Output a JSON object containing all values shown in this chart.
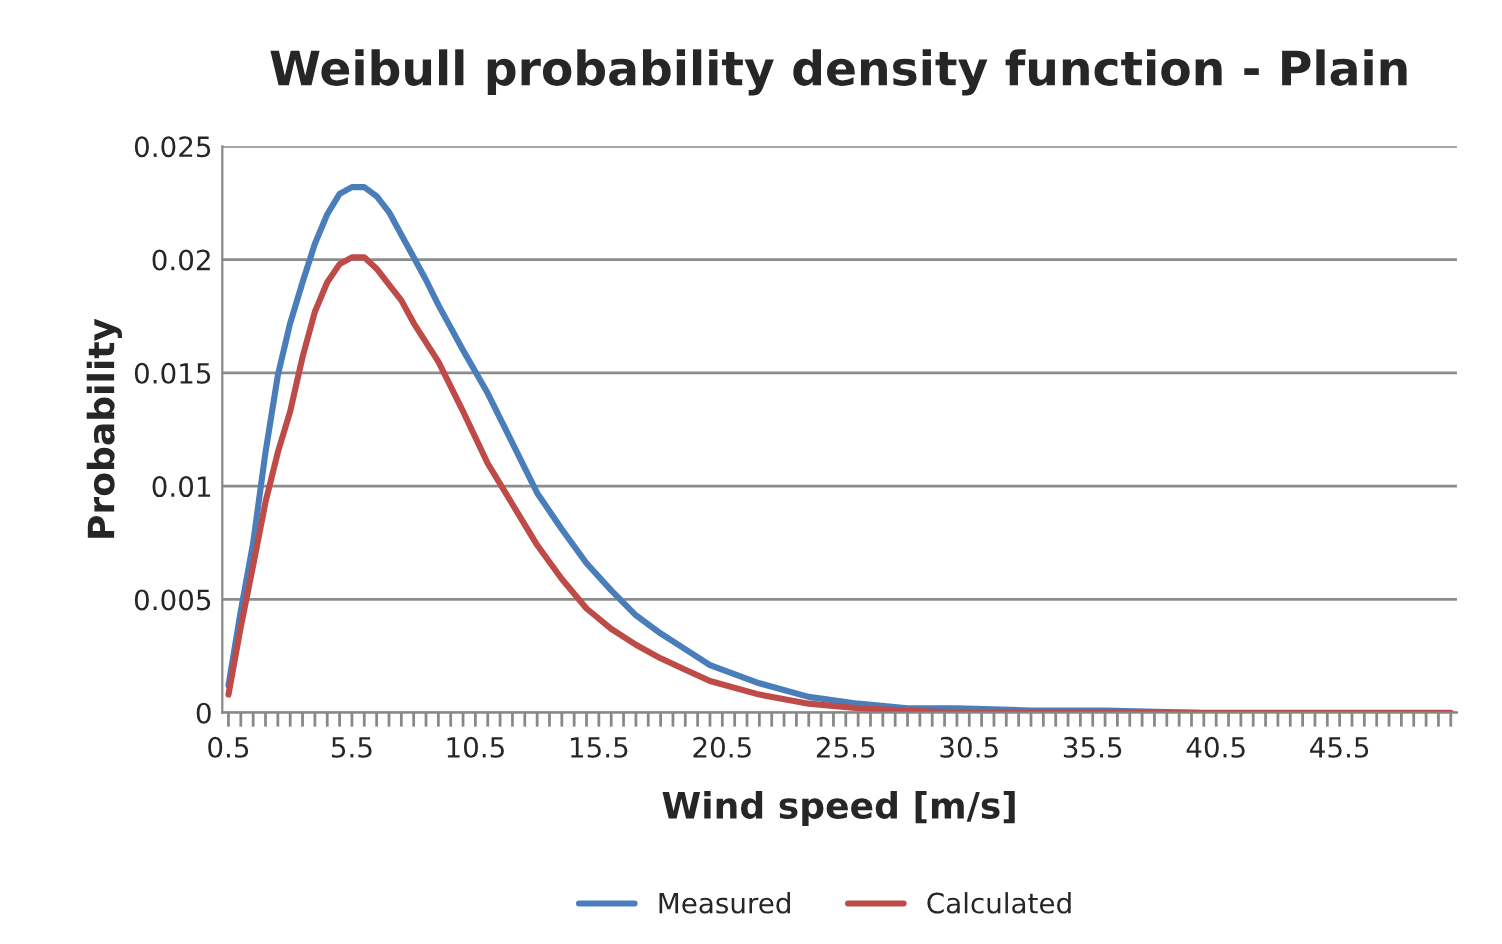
{
  "chart_data": {
    "type": "line",
    "title": "Weibull probability density function - Plain",
    "xlabel": "Wind speed [m/s]",
    "ylabel": "Probability",
    "series": [
      {
        "name": "Measured",
        "color": "#4a7ebb",
        "x": [
          0.5,
          1,
          1.5,
          2,
          2.5,
          3,
          3.5,
          4,
          4.5,
          5,
          5.5,
          6,
          6.5,
          7,
          7.5,
          8,
          8.5,
          9,
          10,
          11,
          12,
          13,
          14,
          15,
          16,
          17,
          18,
          19,
          20,
          22,
          24,
          26,
          28,
          30,
          33,
          36,
          39.8
        ],
        "values": [
          0.0012,
          0.0045,
          0.0075,
          0.0115,
          0.0149,
          0.0172,
          0.019,
          0.0207,
          0.022,
          0.0229,
          0.0232,
          0.0232,
          0.0228,
          0.0221,
          0.0211,
          0.0201,
          0.0191,
          0.018,
          0.016,
          0.0141,
          0.0119,
          0.0097,
          0.0081,
          0.0066,
          0.0054,
          0.0043,
          0.0035,
          0.0028,
          0.0021,
          0.0013,
          0.0007,
          0.0004,
          0.0002,
          0.0002,
          0.0001,
          0.0001,
          0.0
        ]
      },
      {
        "name": "Calculated",
        "color": "#be4b48",
        "x": [
          0.5,
          1,
          1.5,
          2,
          2.5,
          3,
          3.5,
          4,
          4.5,
          5,
          5.5,
          6,
          6.5,
          7,
          7.5,
          8,
          9,
          10,
          11,
          12,
          13,
          14,
          15,
          16,
          17,
          18,
          19,
          20,
          22,
          24,
          26,
          28,
          30,
          35,
          40,
          45,
          50
        ],
        "values": [
          0.0008,
          0.0038,
          0.0065,
          0.0093,
          0.0115,
          0.0133,
          0.0157,
          0.0177,
          0.019,
          0.0198,
          0.0201,
          0.0201,
          0.0196,
          0.0189,
          0.0182,
          0.0172,
          0.0155,
          0.0133,
          0.011,
          0.0092,
          0.0074,
          0.0059,
          0.0046,
          0.0037,
          0.003,
          0.0024,
          0.0019,
          0.0014,
          0.0008,
          0.0004,
          0.0002,
          0.0001,
          0.0,
          0.0,
          0.0,
          0.0,
          0.0
        ]
      }
    ],
    "xlim": [
      0.25,
      50.25
    ],
    "xticks": [
      0.5,
      {
        "value": 1,
        "label": null
      },
      {
        "value": 1.5,
        "label": null
      },
      {
        "value": 2,
        "label": null
      },
      {
        "value": 2.5,
        "label": null
      },
      {
        "value": 3,
        "label": null
      },
      {
        "value": 3.5,
        "label": null
      },
      {
        "value": 4,
        "label": null
      },
      {
        "value": 4.5,
        "label": null
      },
      {
        "value": 5,
        "label": null
      },
      5.5,
      {
        "value": 6,
        "label": null
      },
      {
        "value": 6.5,
        "label": null
      },
      {
        "value": 7,
        "label": null
      },
      {
        "value": 7.5,
        "label": null
      },
      {
        "value": 8,
        "label": null
      },
      {
        "value": 8.5,
        "label": null
      },
      {
        "value": 9,
        "label": null
      },
      {
        "value": 9.5,
        "label": null
      },
      {
        "value": 10,
        "label": null
      },
      10.5,
      {
        "value": 11,
        "label": null
      },
      {
        "value": 11.5,
        "label": null
      },
      {
        "value": 12,
        "label": null
      },
      {
        "value": 12.5,
        "label": null
      },
      {
        "value": 13,
        "label": null
      },
      {
        "value": 13.5,
        "label": null
      },
      {
        "value": 14,
        "label": null
      },
      {
        "value": 14.5,
        "label": null
      },
      {
        "value": 15,
        "label": null
      },
      15.5,
      {
        "value": 16,
        "label": null
      },
      {
        "value": 16.5,
        "label": null
      },
      {
        "value": 17,
        "label": null
      },
      {
        "value": 17.5,
        "label": null
      },
      {
        "value": 18,
        "label": null
      },
      {
        "value": 18.5,
        "label": null
      },
      {
        "value": 19,
        "label": null
      },
      {
        "value": 19.5,
        "label": null
      },
      {
        "value": 20,
        "label": null
      },
      20.5,
      {
        "value": 21,
        "label": null
      },
      {
        "value": 21.5,
        "label": null
      },
      {
        "value": 22,
        "label": null
      },
      {
        "value": 22.5,
        "label": null
      },
      {
        "value": 23,
        "label": null
      },
      {
        "value": 23.5,
        "label": null
      },
      {
        "value": 24,
        "label": null
      },
      {
        "value": 24.5,
        "label": null
      },
      {
        "value": 25,
        "label": null
      },
      25.5,
      {
        "value": 26,
        "label": null
      },
      {
        "value": 26.5,
        "label": null
      },
      {
        "value": 27,
        "label": null
      },
      {
        "value": 27.5,
        "label": null
      },
      {
        "value": 28,
        "label": null
      },
      {
        "value": 28.5,
        "label": null
      },
      {
        "value": 29,
        "label": null
      },
      {
        "value": 29.5,
        "label": null
      },
      {
        "value": 30,
        "label": null
      },
      30.5,
      {
        "value": 31,
        "label": null
      },
      {
        "value": 31.5,
        "label": null
      },
      {
        "value": 32,
        "label": null
      },
      {
        "value": 32.5,
        "label": null
      },
      {
        "value": 33,
        "label": null
      },
      {
        "value": 33.5,
        "label": null
      },
      {
        "value": 34,
        "label": null
      },
      {
        "value": 34.5,
        "label": null
      },
      {
        "value": 35,
        "label": null
      },
      35.5,
      {
        "value": 36,
        "label": null
      },
      {
        "value": 36.5,
        "label": null
      },
      {
        "value": 37,
        "label": null
      },
      {
        "value": 37.5,
        "label": null
      },
      {
        "value": 38,
        "label": null
      },
      {
        "value": 38.5,
        "label": null
      },
      {
        "value": 39,
        "label": null
      },
      {
        "value": 39.5,
        "label": null
      },
      {
        "value": 40,
        "label": null
      },
      40.5,
      {
        "value": 41,
        "label": null
      },
      {
        "value": 41.5,
        "label": null
      },
      {
        "value": 42,
        "label": null
      },
      {
        "value": 42.5,
        "label": null
      },
      {
        "value": 43,
        "label": null
      },
      {
        "value": 43.5,
        "label": null
      },
      {
        "value": 44,
        "label": null
      },
      {
        "value": 44.5,
        "label": null
      },
      {
        "value": 45,
        "label": null
      },
      45.5,
      {
        "value": 46,
        "label": null
      },
      {
        "value": 46.5,
        "label": null
      },
      {
        "value": 47,
        "label": null
      },
      {
        "value": 47.5,
        "label": null
      },
      {
        "value": 48,
        "label": null
      },
      {
        "value": 48.5,
        "label": null
      },
      {
        "value": 49,
        "label": null
      },
      {
        "value": 49.5,
        "label": null
      },
      {
        "value": 50,
        "label": null
      }
    ],
    "ylim": [
      0,
      0.025
    ],
    "yticks": [
      0,
      0.005,
      0.01,
      0.015,
      0.02,
      0.025
    ],
    "grid": "y",
    "legend": "bottom",
    "marker": "none",
    "line_style": "solid"
  }
}
